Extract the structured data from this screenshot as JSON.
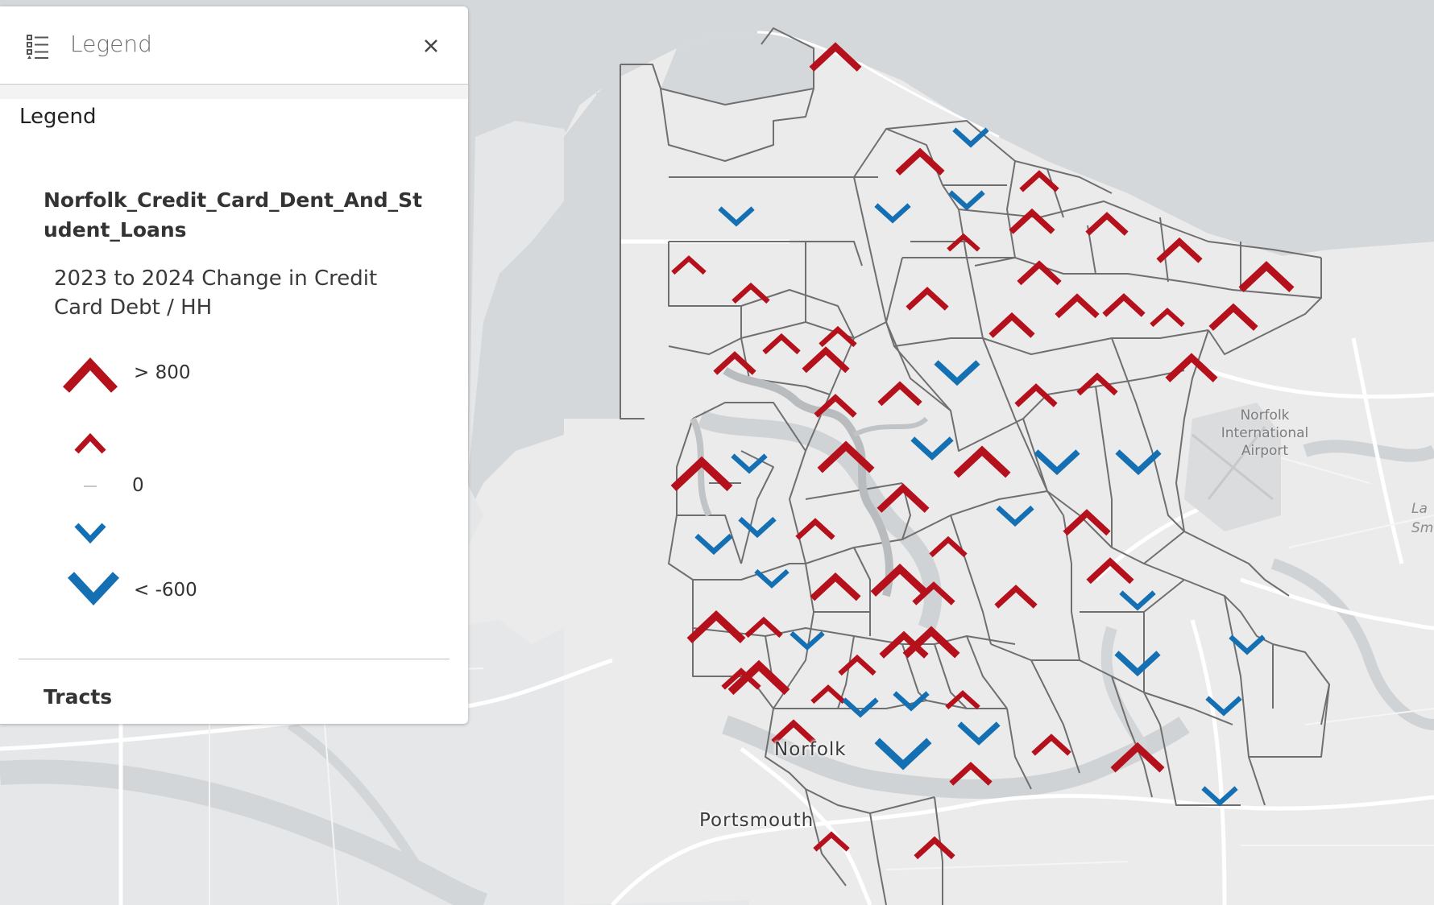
{
  "legend_panel": {
    "header_title": "Legend",
    "heading": "Legend",
    "layer_title": "Norfolk_Credit_Card_Dent_And_Student_Loans",
    "field_title": "2023 to 2024 Change in Credit Card Debt / HH",
    "classes": [
      {
        "symbol": "up-large-chevron-icon",
        "label": "> 800",
        "color": "#b5111c"
      },
      {
        "symbol": "up-small-chevron-icon",
        "label": "",
        "color": "#b5111c"
      },
      {
        "symbol": "zero-dash-icon",
        "label": "0",
        "color": "#c8c8c8"
      },
      {
        "symbol": "down-small-chevron-icon",
        "label": "",
        "color": "#1570b3"
      },
      {
        "symbol": "down-large-chevron-icon",
        "label": "< -600",
        "color": "#1570b3"
      }
    ],
    "second_layer_title": "Tracts"
  },
  "map": {
    "place_labels": [
      "Norfolk",
      "Portsmouth"
    ],
    "airport_label": [
      "Norfolk",
      "International",
      "Airport"
    ],
    "edge_label": [
      "La",
      "Sm"
    ],
    "colors": {
      "increase": "#b5111c",
      "decrease": "#1570b3",
      "water": "#d7d9db",
      "land": "#ececec",
      "tract_line": "#6f6f6f"
    }
  }
}
